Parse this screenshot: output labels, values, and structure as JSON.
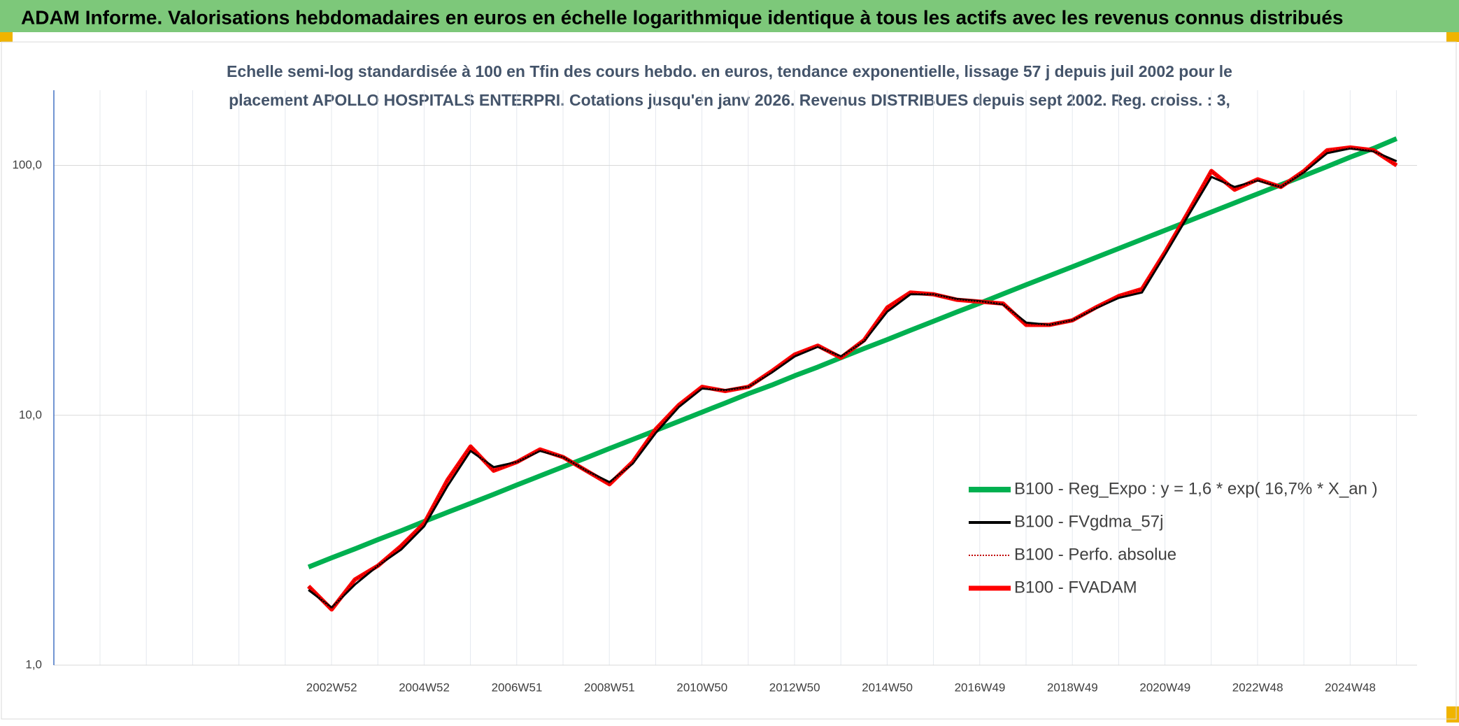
{
  "chart_data": {
    "type": "line",
    "title": "ADAM Informe. Valorisations hebdomadaires en euros en échelle logarithmique identique à tous les actifs avec les revenus connus distribués",
    "subtitle": [
      "Echelle semi-log standardisée à 100 en Tfin des cours hebdo. en euros, tendance exponentielle, lissage 57 j depuis juil 2002 pour le",
      "placement APOLLO HOSPITALS ENTERPRI. Cotations jusqu'en janv 2026. Revenus DISTRIBUES depuis sept 2002. Reg. croiss. : 3,"
    ],
    "log_scale": true,
    "grid": true,
    "legend": "right",
    "ylim": [
      1,
      200
    ],
    "yticks": [
      {
        "value": 1,
        "label": "1,0"
      },
      {
        "value": 10,
        "label": "10,0"
      },
      {
        "value": 100,
        "label": "100,0"
      }
    ],
    "categories": [
      null,
      null,
      null,
      null,
      null,
      null,
      null,
      null,
      null,
      null,
      null,
      null,
      "2002W52",
      null,
      null,
      null,
      "2004W52",
      null,
      null,
      null,
      "2006W51",
      null,
      null,
      null,
      "2008W51",
      null,
      null,
      null,
      "2010W50",
      null,
      null,
      null,
      "2012W50",
      null,
      null,
      null,
      "2014W50",
      null,
      null,
      null,
      "2016W49",
      null,
      null,
      null,
      "2018W49",
      null,
      null,
      null,
      "2020W49",
      null,
      null,
      null,
      "2022W48",
      null,
      null,
      null,
      "2024W48",
      null,
      null
    ],
    "series": [
      {
        "name": "B100 - Reg_Expo : y = 1,6 * exp( 16,7% *  X_an )",
        "color": "#00b050",
        "style": "solid",
        "values": [
          null,
          null,
          null,
          null,
          null,
          null,
          null,
          null,
          null,
          null,
          null,
          2.47,
          2.69,
          2.92,
          3.18,
          3.45,
          3.76,
          4.09,
          4.44,
          4.83,
          5.26,
          5.72,
          6.22,
          6.76,
          7.36,
          8.0,
          8.7,
          9.46,
          10.3,
          11.2,
          12.2,
          13.2,
          14.4,
          15.6,
          17.0,
          18.5,
          20.1,
          21.9,
          23.8,
          25.9,
          28.1,
          30.6,
          33.3,
          36.2,
          39.3,
          42.8,
          46.5,
          50.6,
          55.0,
          59.8,
          65.1,
          70.8,
          77.0,
          83.7,
          91.0,
          99.0,
          108,
          117,
          128
        ]
      },
      {
        "name": "B100 - FVgdma_57j",
        "color": "#000000",
        "style": "solid",
        "values": [
          null,
          null,
          null,
          null,
          null,
          null,
          null,
          null,
          null,
          null,
          null,
          2.0,
          1.7,
          2.1,
          2.5,
          2.9,
          3.6,
          5.2,
          7.2,
          6.2,
          6.5,
          7.2,
          6.8,
          6.0,
          5.4,
          6.4,
          8.5,
          10.8,
          12.8,
          12.6,
          13.0,
          14.8,
          17.2,
          18.8,
          17.2,
          19.8,
          26.0,
          30.5,
          30.5,
          29.2,
          28.6,
          27.8,
          23.5,
          23.0,
          24.0,
          26.8,
          29.5,
          31.0,
          44.0,
          63.0,
          90.0,
          82.0,
          87.0,
          82.0,
          94.0,
          112.0,
          117.0,
          114.0,
          104.0
        ]
      },
      {
        "name": "B100 - Perfo. absolue",
        "color": "#c00000",
        "style": "dotted",
        "values": [
          null,
          null,
          null,
          null,
          null,
          null,
          null,
          null,
          null,
          null,
          null,
          2.07,
          1.67,
          2.2,
          2.5,
          3.0,
          3.7,
          5.5,
          7.5,
          6.0,
          6.5,
          7.3,
          6.8,
          6.0,
          5.3,
          6.5,
          8.8,
          11.0,
          13.0,
          12.5,
          13.0,
          15.0,
          17.5,
          19.0,
          17.0,
          20.0,
          27.0,
          31.0,
          30.5,
          29.0,
          28.5,
          28.0,
          23.0,
          23.0,
          24.0,
          27.0,
          30.0,
          32.0,
          45.0,
          65.0,
          95.0,
          80.0,
          88.0,
          82.0,
          95.0,
          115.0,
          118.0,
          115.0,
          100.0
        ]
      },
      {
        "name": "B100 - FVADAM",
        "color": "#ff0000",
        "style": "solid",
        "values": [
          null,
          null,
          null,
          null,
          null,
          null,
          null,
          null,
          null,
          null,
          null,
          2.07,
          1.67,
          2.2,
          2.5,
          3.0,
          3.7,
          5.5,
          7.5,
          6.0,
          6.5,
          7.3,
          6.8,
          6.0,
          5.3,
          6.5,
          8.8,
          11.0,
          13.0,
          12.5,
          13.0,
          15.0,
          17.5,
          19.0,
          17.0,
          20.0,
          27.0,
          31.0,
          30.5,
          29.0,
          28.5,
          28.0,
          23.0,
          23.0,
          24.0,
          27.0,
          30.0,
          32.0,
          45.0,
          65.0,
          95.0,
          80.0,
          88.0,
          82.0,
          95.0,
          115.0,
          118.0,
          115.0,
          100.0
        ]
      }
    ]
  }
}
